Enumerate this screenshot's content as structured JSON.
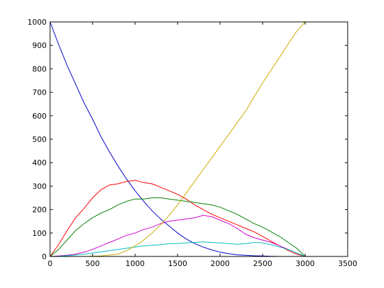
{
  "chart_data": {
    "type": "line",
    "title": "",
    "xlabel": "",
    "ylabel": "",
    "xlim": [
      0,
      3500
    ],
    "ylim": [
      0,
      1000
    ],
    "x_ticks": [
      0,
      500,
      1000,
      1500,
      2000,
      2500,
      3000,
      3500
    ],
    "y_ticks": [
      0,
      100,
      200,
      300,
      400,
      500,
      600,
      700,
      800,
      900,
      1000
    ],
    "x_tick_labels": [
      "0",
      "500",
      "1000",
      "1500",
      "2000",
      "2500",
      "3000",
      "3500"
    ],
    "y_tick_labels": [
      "0",
      "100",
      "200",
      "300",
      "400",
      "500",
      "600",
      "700",
      "800",
      "900",
      "1000"
    ],
    "grid": false,
    "legend": "none",
    "series": [
      {
        "color": "#0000cc",
        "x": [
          0,
          100,
          200,
          300,
          400,
          500,
          600,
          700,
          800,
          900,
          1000,
          1100,
          1200,
          1300,
          1400,
          1500,
          1600,
          1700,
          1800,
          1900,
          2000,
          2100,
          2200,
          2300,
          2400,
          2500,
          2600,
          2700
        ],
        "y": [
          1000,
          905,
          815,
          735,
          655,
          585,
          510,
          445,
          385,
          330,
          280,
          235,
          195,
          160,
          130,
          100,
          75,
          55,
          40,
          28,
          18,
          12,
          7,
          5,
          3,
          2,
          1,
          0
        ]
      },
      {
        "color": "#ff0000",
        "x": [
          0,
          100,
          200,
          300,
          400,
          500,
          600,
          700,
          800,
          900,
          1000,
          1100,
          1200,
          1300,
          1400,
          1500,
          1600,
          1700,
          1800,
          1900,
          2000,
          2100,
          2200,
          2300,
          2400,
          2500,
          2600,
          2700,
          2800,
          2900,
          3000
        ],
        "y": [
          0,
          50,
          110,
          165,
          205,
          250,
          285,
          305,
          310,
          320,
          325,
          315,
          310,
          295,
          280,
          265,
          245,
          220,
          200,
          180,
          165,
          150,
          135,
          120,
          105,
          85,
          65,
          45,
          25,
          10,
          0
        ]
      },
      {
        "color": "#008000",
        "x": [
          0,
          100,
          200,
          300,
          400,
          500,
          600,
          700,
          800,
          900,
          1000,
          1100,
          1200,
          1300,
          1400,
          1500,
          1600,
          1700,
          1800,
          1900,
          2000,
          2100,
          2200,
          2300,
          2400,
          2500,
          2600,
          2700,
          2800,
          2900,
          3000
        ],
        "y": [
          0,
          30,
          70,
          110,
          140,
          165,
          185,
          200,
          220,
          235,
          245,
          245,
          250,
          250,
          245,
          240,
          235,
          230,
          225,
          220,
          210,
          195,
          180,
          160,
          140,
          125,
          105,
          85,
          60,
          35,
          0
        ]
      },
      {
        "color": "#cc00cc",
        "x": [
          0,
          100,
          200,
          300,
          400,
          500,
          600,
          700,
          800,
          900,
          1000,
          1100,
          1200,
          1300,
          1400,
          1500,
          1600,
          1700,
          1800,
          1900,
          2000,
          2100,
          2200,
          2300,
          2400,
          2500,
          2600,
          2700,
          2800,
          2900,
          3000
        ],
        "y": [
          0,
          2,
          5,
          10,
          18,
          30,
          45,
          60,
          75,
          90,
          100,
          115,
          125,
          140,
          150,
          155,
          160,
          165,
          175,
          170,
          155,
          140,
          120,
          95,
          80,
          70,
          60,
          45,
          30,
          15,
          0
        ]
      },
      {
        "color": "#00bfbf",
        "x": [
          0,
          100,
          200,
          300,
          400,
          500,
          600,
          700,
          800,
          900,
          1000,
          1100,
          1200,
          1300,
          1400,
          1500,
          1600,
          1700,
          1800,
          1900,
          2000,
          2100,
          2200,
          2300,
          2400,
          2500,
          2600,
          2700,
          2800,
          2900,
          3000
        ],
        "y": [
          0,
          1,
          3,
          6,
          10,
          15,
          20,
          25,
          30,
          35,
          40,
          45,
          48,
          50,
          55,
          55,
          58,
          60,
          62,
          60,
          58,
          55,
          52,
          55,
          60,
          58,
          50,
          40,
          30,
          15,
          0
        ]
      },
      {
        "color": "#ccaa00",
        "x": [
          0,
          200,
          400,
          600,
          800,
          900,
          1000,
          1100,
          1200,
          1300,
          1400,
          1500,
          1600,
          1700,
          1800,
          1900,
          2000,
          2100,
          2200,
          2300,
          2400,
          2500,
          2600,
          2700,
          2800,
          2900,
          3000
        ],
        "y": [
          0,
          0,
          0,
          2,
          10,
          25,
          45,
          70,
          100,
          135,
          175,
          220,
          270,
          320,
          370,
          420,
          470,
          520,
          570,
          620,
          680,
          740,
          795,
          850,
          905,
          960,
          1000
        ]
      }
    ]
  }
}
